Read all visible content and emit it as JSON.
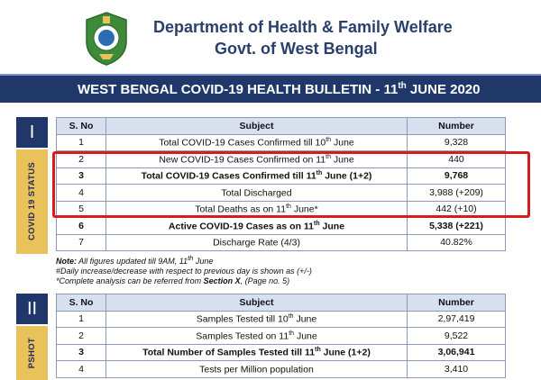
{
  "header": {
    "department": "Department of Health & Family Welfare",
    "government": "Govt. of West Bengal"
  },
  "banner": {
    "title_part1": "WEST BENGAL COVID-19 HEALTH BULLETIN -  11",
    "title_sup": "th",
    "title_part2": " JUNE 2020"
  },
  "section1": {
    "roman": "I",
    "side_label": "COVID 19 STATUS",
    "columns": [
      "S. No",
      "Subject",
      "Number"
    ],
    "rows": [
      {
        "sn": "1",
        "pre": "Total COVID-19 Cases Confirmed till 10",
        "sup": "th",
        "post": " June",
        "num": "9,328"
      },
      {
        "sn": "2",
        "pre": "New COVID-19 Cases Confirmed on 11",
        "sup": "th",
        "post": " June",
        "num": "440"
      },
      {
        "sn": "3",
        "pre": "Total COVID-19 Cases Confirmed till 11",
        "sup": "th",
        "post": " June (1+2)",
        "num": "9,768"
      },
      {
        "sn": "4",
        "pre": "Total Discharged",
        "sup": "",
        "post": "",
        "num": "3,988 (+209)"
      },
      {
        "sn": "5",
        "pre": "Total Deaths as on 11",
        "sup": "th",
        "post": " June*",
        "num": "442 (+10)"
      },
      {
        "sn": "6",
        "pre": "Active COVID-19 Cases as on 11",
        "sup": "th",
        "post": " June",
        "num": "5,338 (+221)"
      },
      {
        "sn": "7",
        "pre": "Discharge Rate (4/3)",
        "sup": "",
        "post": "",
        "num": "40.82%"
      }
    ]
  },
  "notes": {
    "line1_label": "Note:",
    "line1_text": " All figures updated till 9AM, 11",
    "line1_sup": "th",
    "line1_end": " June",
    "line2": "#Daily increase/decrease with respect to previous day is shown as (+/-)",
    "line3_pre": "*Complete analysis can be referred from ",
    "line3_bold": "Section X",
    "line3_post": ", (Page no. 5)"
  },
  "section2": {
    "roman": "II",
    "side_label": "PSHOT",
    "columns": [
      "S. No",
      "Subject",
      "Number"
    ],
    "rows": [
      {
        "sn": "1",
        "pre": "Samples Tested till 10",
        "sup": "th",
        "post": " June",
        "num": "2,97,419"
      },
      {
        "sn": "2",
        "pre": "Samples Tested on 11",
        "sup": "th",
        "post": " June",
        "num": "9,522"
      },
      {
        "sn": "3",
        "pre": "Total Number of Samples Tested till 11",
        "sup": "th",
        "post": " June (1+2)",
        "num": "3,06,941"
      },
      {
        "sn": "4",
        "pre": "Tests per Million population",
        "sup": "",
        "post": "",
        "num": "3,410"
      }
    ]
  },
  "colors": {
    "navy": "#1f3869",
    "gold": "#e9c25c",
    "highlight": "#d61c1c"
  }
}
